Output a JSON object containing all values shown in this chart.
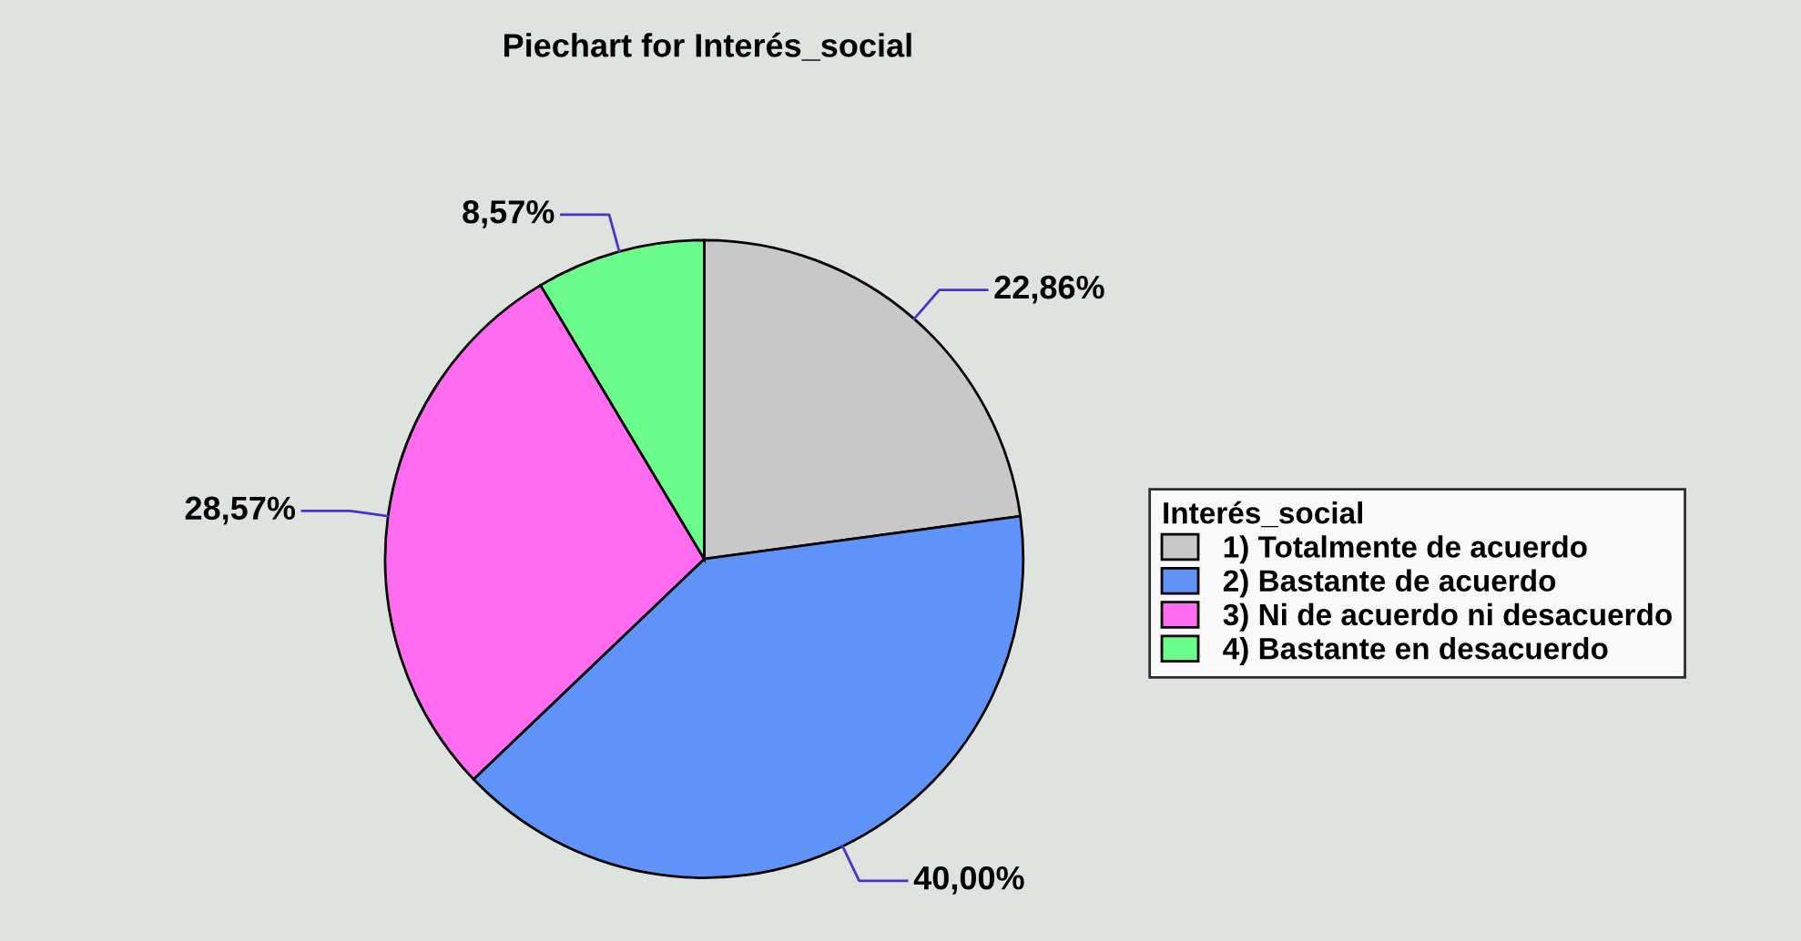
{
  "chart_data": {
    "type": "pie",
    "title": "Piechart for Interés_social",
    "legend_title": "Interés_social",
    "categories": [
      "1) Totalmente de acuerdo",
      "2) Bastante de acuerdo",
      "3) Ni de acuerdo ni desacuerdo",
      "4) Bastante en desacuerdo"
    ],
    "values": [
      22.86,
      40.0,
      28.57,
      8.57
    ],
    "value_labels": [
      "22,86%",
      "40,00%",
      "28,57%",
      "8,57%"
    ],
    "colors": [
      "#c8c8c8",
      "#5f93f7",
      "#ff6cf0",
      "#6cfc8c"
    ],
    "legend": "right"
  }
}
